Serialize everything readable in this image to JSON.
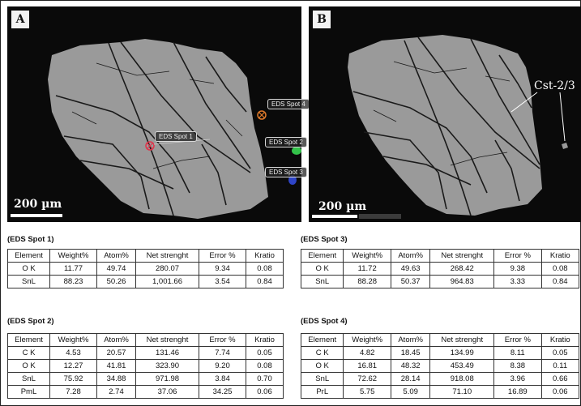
{
  "panels": {
    "a": {
      "label": "A",
      "scalebar": "200 µm"
    },
    "b": {
      "label": "B",
      "scalebar": "200 µm",
      "annotation": "Cst-2/3"
    }
  },
  "spot_labels": [
    "EDS Spot 1",
    "EDS Spot 2",
    "EDS Spot 3",
    "EDS Spot 4"
  ],
  "spot_colors": {
    "spot1": "#e0344a",
    "spot2": "#33c24a",
    "spot3": "#2f45c8",
    "spot4": "#e07a2a"
  },
  "table_headers": [
    "Element",
    "Weight%",
    "Atom%",
    "Net strenght",
    "Error %",
    "Kratio"
  ],
  "tables": [
    {
      "caption": "(EDS Spot 1)",
      "rows": [
        [
          "O K",
          "11.77",
          "49.74",
          "280.07",
          "9.34",
          "0.08"
        ],
        [
          "SnL",
          "88.23",
          "50.26",
          "1,001.66",
          "3.54",
          "0.84"
        ]
      ]
    },
    {
      "caption": "(EDS Spot 3)",
      "rows": [
        [
          "O K",
          "11.72",
          "49.63",
          "268.42",
          "9.38",
          "0.08"
        ],
        [
          "SnL",
          "88.28",
          "50.37",
          "964.83",
          "3.33",
          "0.84"
        ]
      ]
    },
    {
      "caption": "(EDS Spot 2)",
      "rows": [
        [
          "C K",
          "4.53",
          "20.57",
          "131.46",
          "7.74",
          "0.05"
        ],
        [
          "O K",
          "12.27",
          "41.81",
          "323.90",
          "9.20",
          "0.08"
        ],
        [
          "SnL",
          "75.92",
          "34.88",
          "971.98",
          "3.84",
          "0.70"
        ],
        [
          "PmL",
          "7.28",
          "2.74",
          "37.06",
          "34.25",
          "0.06"
        ]
      ]
    },
    {
      "caption": "(EDS Spot 4)",
      "rows": [
        [
          "C K",
          "4.82",
          "18.45",
          "134.99",
          "8.11",
          "0.05"
        ],
        [
          "O K",
          "16.81",
          "48.32",
          "453.49",
          "8.38",
          "0.11"
        ],
        [
          "SnL",
          "72.62",
          "28.14",
          "918.08",
          "3.96",
          "0.66"
        ],
        [
          "PrL",
          "5.75",
          "5.09",
          "71.10",
          "16.89",
          "0.06"
        ]
      ]
    }
  ]
}
